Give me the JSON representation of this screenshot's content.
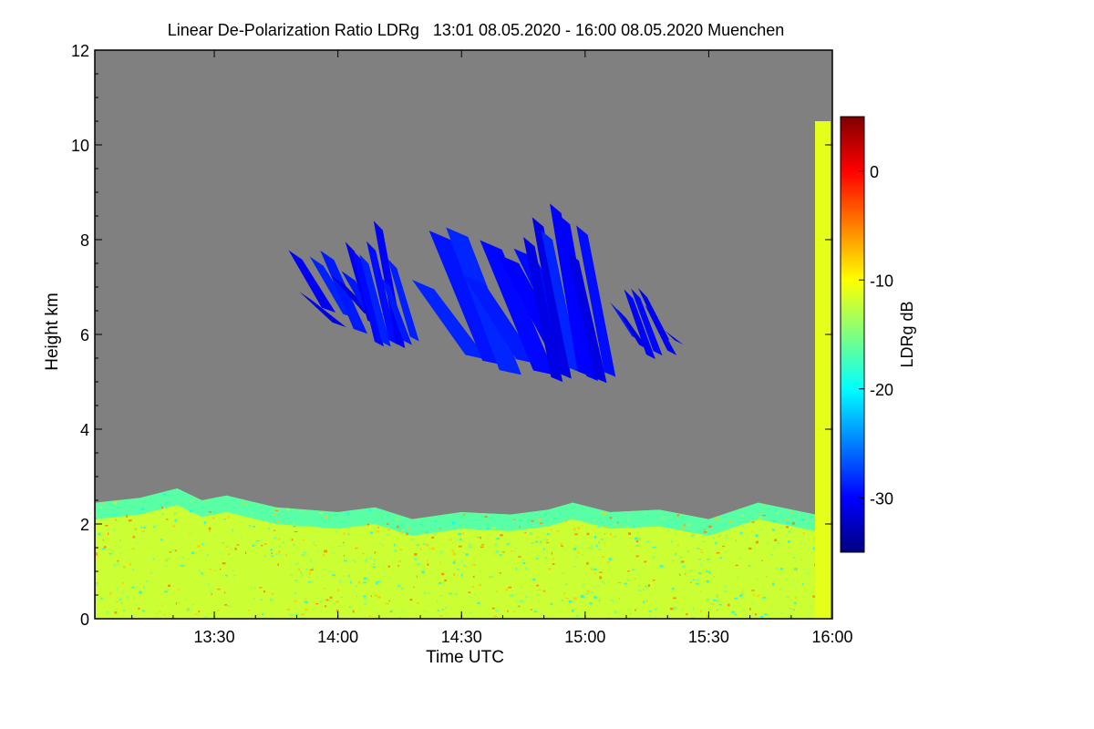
{
  "chart_data": {
    "type": "heatmap",
    "title": "Linear De-Polarization Ratio LDRg   13:01 08.05.2020 - 16:00 08.05.2020 Muenchen",
    "xlabel": "Time UTC",
    "ylabel": "Height km",
    "x_tick_labels": [
      "13:30",
      "14:00",
      "14:30",
      "15:00",
      "15:30",
      "16:00"
    ],
    "x_tick_hours": [
      13.5,
      14.0,
      14.5,
      15.0,
      15.5,
      16.0
    ],
    "xlim_hours": [
      13.0167,
      16.0
    ],
    "y_ticks": [
      0,
      2,
      4,
      6,
      8,
      10,
      12
    ],
    "ylim": [
      0,
      12
    ],
    "colorbar": {
      "label": "LDRg dB",
      "range": [
        -35,
        5
      ],
      "ticks": [
        0,
        -10,
        -20,
        -30
      ],
      "colormap": "jet"
    },
    "background_no_signal_color": "#808080",
    "boundary_layer_top_km": [
      [
        13.02,
        2.45
      ],
      [
        13.2,
        2.55
      ],
      [
        13.35,
        2.75
      ],
      [
        13.45,
        2.5
      ],
      [
        13.55,
        2.6
      ],
      [
        13.75,
        2.35
      ],
      [
        14.0,
        2.25
      ],
      [
        14.15,
        2.35
      ],
      [
        14.3,
        2.1
      ],
      [
        14.5,
        2.25
      ],
      [
        14.7,
        2.2
      ],
      [
        14.85,
        2.3
      ],
      [
        14.95,
        2.45
      ],
      [
        15.1,
        2.25
      ],
      [
        15.3,
        2.3
      ],
      [
        15.5,
        2.1
      ],
      [
        15.7,
        2.45
      ],
      [
        15.93,
        2.2
      ]
    ],
    "boundary_layer_ldr_db": -12,
    "cirrus_ldr_db": -30,
    "cirrus_clouds": [
      {
        "t_start": 13.8,
        "t_end": 14.1,
        "base_km": 6.0,
        "top_km": 7.8
      },
      {
        "t_start": 14.03,
        "t_end": 14.23,
        "base_km": 5.7,
        "top_km": 8.4
      },
      {
        "t_start": 14.3,
        "t_end": 14.78,
        "base_km": 5.0,
        "top_km": 8.3
      },
      {
        "t_start": 14.75,
        "t_end": 15.0,
        "base_km": 4.9,
        "top_km": 8.8
      },
      {
        "t_start": 15.1,
        "t_end": 15.3,
        "base_km": 5.4,
        "top_km": 7.5
      }
    ],
    "legend": "colorbar right of plot"
  }
}
